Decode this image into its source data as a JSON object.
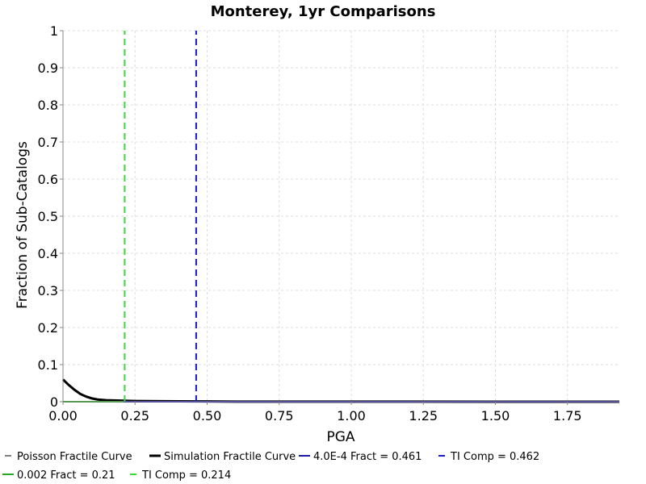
{
  "chart_data": {
    "type": "line",
    "title": "Monterey, 1yr Comparisons",
    "xlabel": "PGA",
    "ylabel": "Fraction of Sub-Catalogs",
    "xlim": [
      0.0,
      1.93
    ],
    "ylim": [
      0.0,
      1.0
    ],
    "x_ticks": [
      "0.00",
      "0.25",
      "0.50",
      "0.75",
      "1.00",
      "1.25",
      "1.50",
      "1.75"
    ],
    "y_ticks": [
      "0",
      "0.1",
      "0.2",
      "0.3",
      "0.4",
      "0.5",
      "0.6",
      "0.7",
      "0.8",
      "0.9",
      "1"
    ],
    "grid": true,
    "legend_position": "bottom",
    "series": [
      {
        "name": "Poisson Fractile Curve",
        "color": "#555555",
        "style": "dashed",
        "x": [
          0.0,
          1.93
        ],
        "y": [
          0.0,
          0.0
        ]
      },
      {
        "name": "Simulation Fractile Curve",
        "color": "#000000",
        "style": "solid-thick",
        "x": [
          0.0,
          0.02,
          0.04,
          0.06,
          0.08,
          0.1,
          0.12,
          0.15,
          0.2,
          0.25,
          0.3,
          0.4,
          0.5,
          0.6,
          1.0,
          1.5,
          1.93
        ],
        "y": [
          0.06,
          0.045,
          0.032,
          0.021,
          0.014,
          0.009,
          0.006,
          0.004,
          0.003,
          0.002,
          0.0015,
          0.001,
          0.0007,
          0.0004,
          0.0002,
          0.0001,
          0.0
        ]
      },
      {
        "name": "4.0E-4 Fract = 0.461",
        "color": "#1a1aa6",
        "style": "solid",
        "x": [
          0.0,
          1.93
        ],
        "y": [
          0.0,
          0.0
        ]
      },
      {
        "name": "TI Comp = 0.462",
        "color": "#1a1acc",
        "style": "dashed-vertical",
        "x": [
          0.462,
          0.462
        ],
        "y": [
          0.0,
          1.0
        ]
      },
      {
        "name": "0.002 Fract = 0.21",
        "color": "#22aa22",
        "style": "solid",
        "x": [
          0.0,
          0.21
        ],
        "y": [
          0.0,
          0.0
        ]
      },
      {
        "name": "TI Comp = 0.214",
        "color": "#33dd33",
        "style": "dashed-vertical",
        "x": [
          0.214,
          0.214
        ],
        "y": [
          0.0,
          1.0
        ]
      }
    ]
  }
}
